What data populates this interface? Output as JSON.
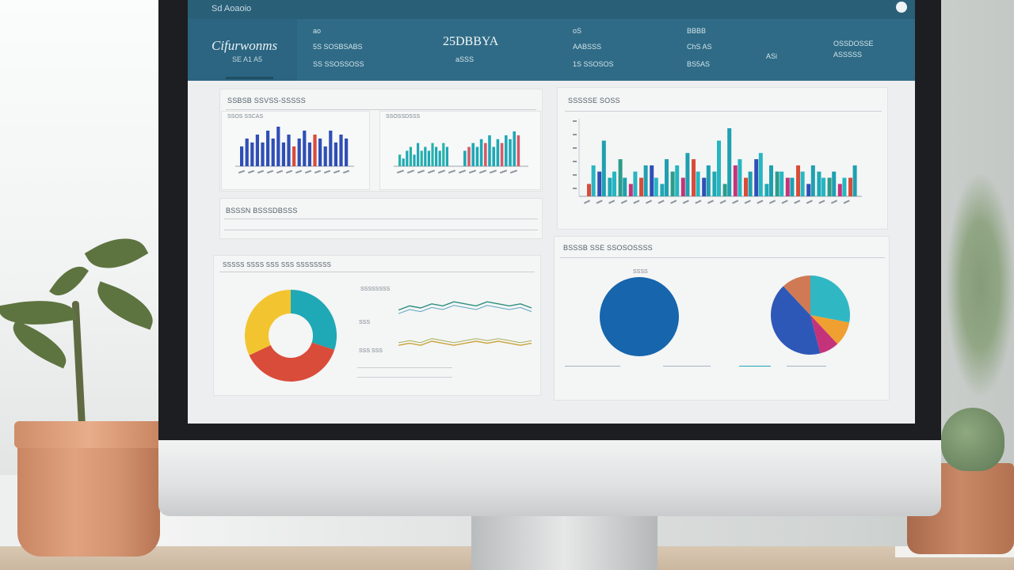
{
  "header": {
    "top_text": "Sd Aoaoio",
    "brand_title": "Cifurwonms",
    "brand_sub": "SE A1 A5",
    "stats": [
      {
        "label": "ao",
        "value": "5S SOSBSABS",
        "sub": "SS SSOSSOSS"
      },
      {
        "label": "",
        "value": "25DBBYA",
        "sub": "aSSS"
      },
      {
        "label": "oS",
        "value": "AABSSS",
        "sub": "1S SSOSOS"
      },
      {
        "label": "BBBB",
        "value": "ChS AS",
        "sub": "BS5AS"
      },
      {
        "label": "",
        "value": "ASi",
        "sub": ""
      },
      {
        "label": "",
        "value": "OSSDOSSE",
        "sub": "ASSSSS"
      }
    ]
  },
  "panels": {
    "bars_small": {
      "title": "SSBSB SSVSS-SSSSS",
      "left_label": "SSOS SSCAS",
      "right_label": "SSOSSDSSS"
    },
    "section_mid": {
      "title": "BSSSN BSSSDBSSS"
    },
    "bars_large": {
      "title": "SSSSSE SOSS"
    },
    "donut_panel": {
      "title": "SSSSS SSSS  SSS  SSS  SSSSSSSS",
      "line1": "SSSSSSSS",
      "line2": "SSS",
      "line3": "SSS SSS"
    },
    "pies_panel": {
      "title": "BSSSB SSE SSOSOSSSS",
      "pie_left_label": "SSSS"
    }
  },
  "colors": {
    "header": "#2f6b86",
    "teal": "#1fa8b5",
    "blue": "#2d58b8",
    "red": "#d94c39",
    "yellow": "#f2c530",
    "magenta": "#c4337a",
    "orange": "#ef9a2c"
  },
  "chart_data": [
    {
      "type": "bar",
      "series": [
        {
          "values": [
            5,
            7,
            6,
            8,
            6,
            9,
            7,
            10,
            6,
            8,
            5,
            7,
            9,
            6,
            8,
            7,
            5,
            9,
            6,
            8,
            7
          ]
        }
      ]
    },
    {
      "type": "bar",
      "series": [
        {
          "values": [
            3,
            2,
            4,
            5,
            3,
            6,
            4,
            5,
            4,
            6,
            5,
            4,
            6,
            5
          ]
        },
        {
          "values": [
            4,
            5,
            6,
            5,
            7,
            6,
            8,
            5,
            7,
            6,
            8,
            7,
            9,
            8
          ]
        }
      ]
    },
    {
      "type": "bar",
      "series": [
        {
          "values": [
            2,
            4,
            3,
            6,
            2,
            3,
            5,
            2,
            4,
            3,
            6,
            3,
            4,
            2,
            5,
            3,
            6,
            2,
            4,
            3,
            5,
            2,
            4,
            3,
            2,
            3
          ]
        },
        {
          "values": [
            5,
            9,
            4,
            3,
            4,
            5,
            3,
            6,
            5,
            7,
            4,
            5,
            9,
            11,
            6,
            4,
            7,
            5,
            4,
            3,
            4,
            5,
            3,
            4,
            3,
            5
          ]
        }
      ]
    },
    {
      "type": "pie",
      "donut": true,
      "values": [
        30,
        38,
        32
      ],
      "colors": [
        "#1fa8b5",
        "#d94c39",
        "#f2c530"
      ]
    },
    {
      "type": "line",
      "series": [
        {
          "values": [
            4,
            6,
            5,
            7,
            6,
            8,
            7,
            6,
            8,
            7,
            6,
            7,
            5
          ]
        },
        {
          "values": [
            3,
            4,
            3,
            5,
            4,
            3,
            4,
            5,
            4,
            5,
            4,
            3,
            4
          ]
        }
      ]
    },
    {
      "type": "pie",
      "values": [
        100
      ],
      "colors": [
        "#1665ad"
      ]
    },
    {
      "type": "pie",
      "values": [
        42,
        12,
        28,
        10,
        8
      ],
      "colors": [
        "#2d58b8",
        "#d07a55",
        "#2fb8c4",
        "#f0a030",
        "#c4337a"
      ]
    }
  ]
}
